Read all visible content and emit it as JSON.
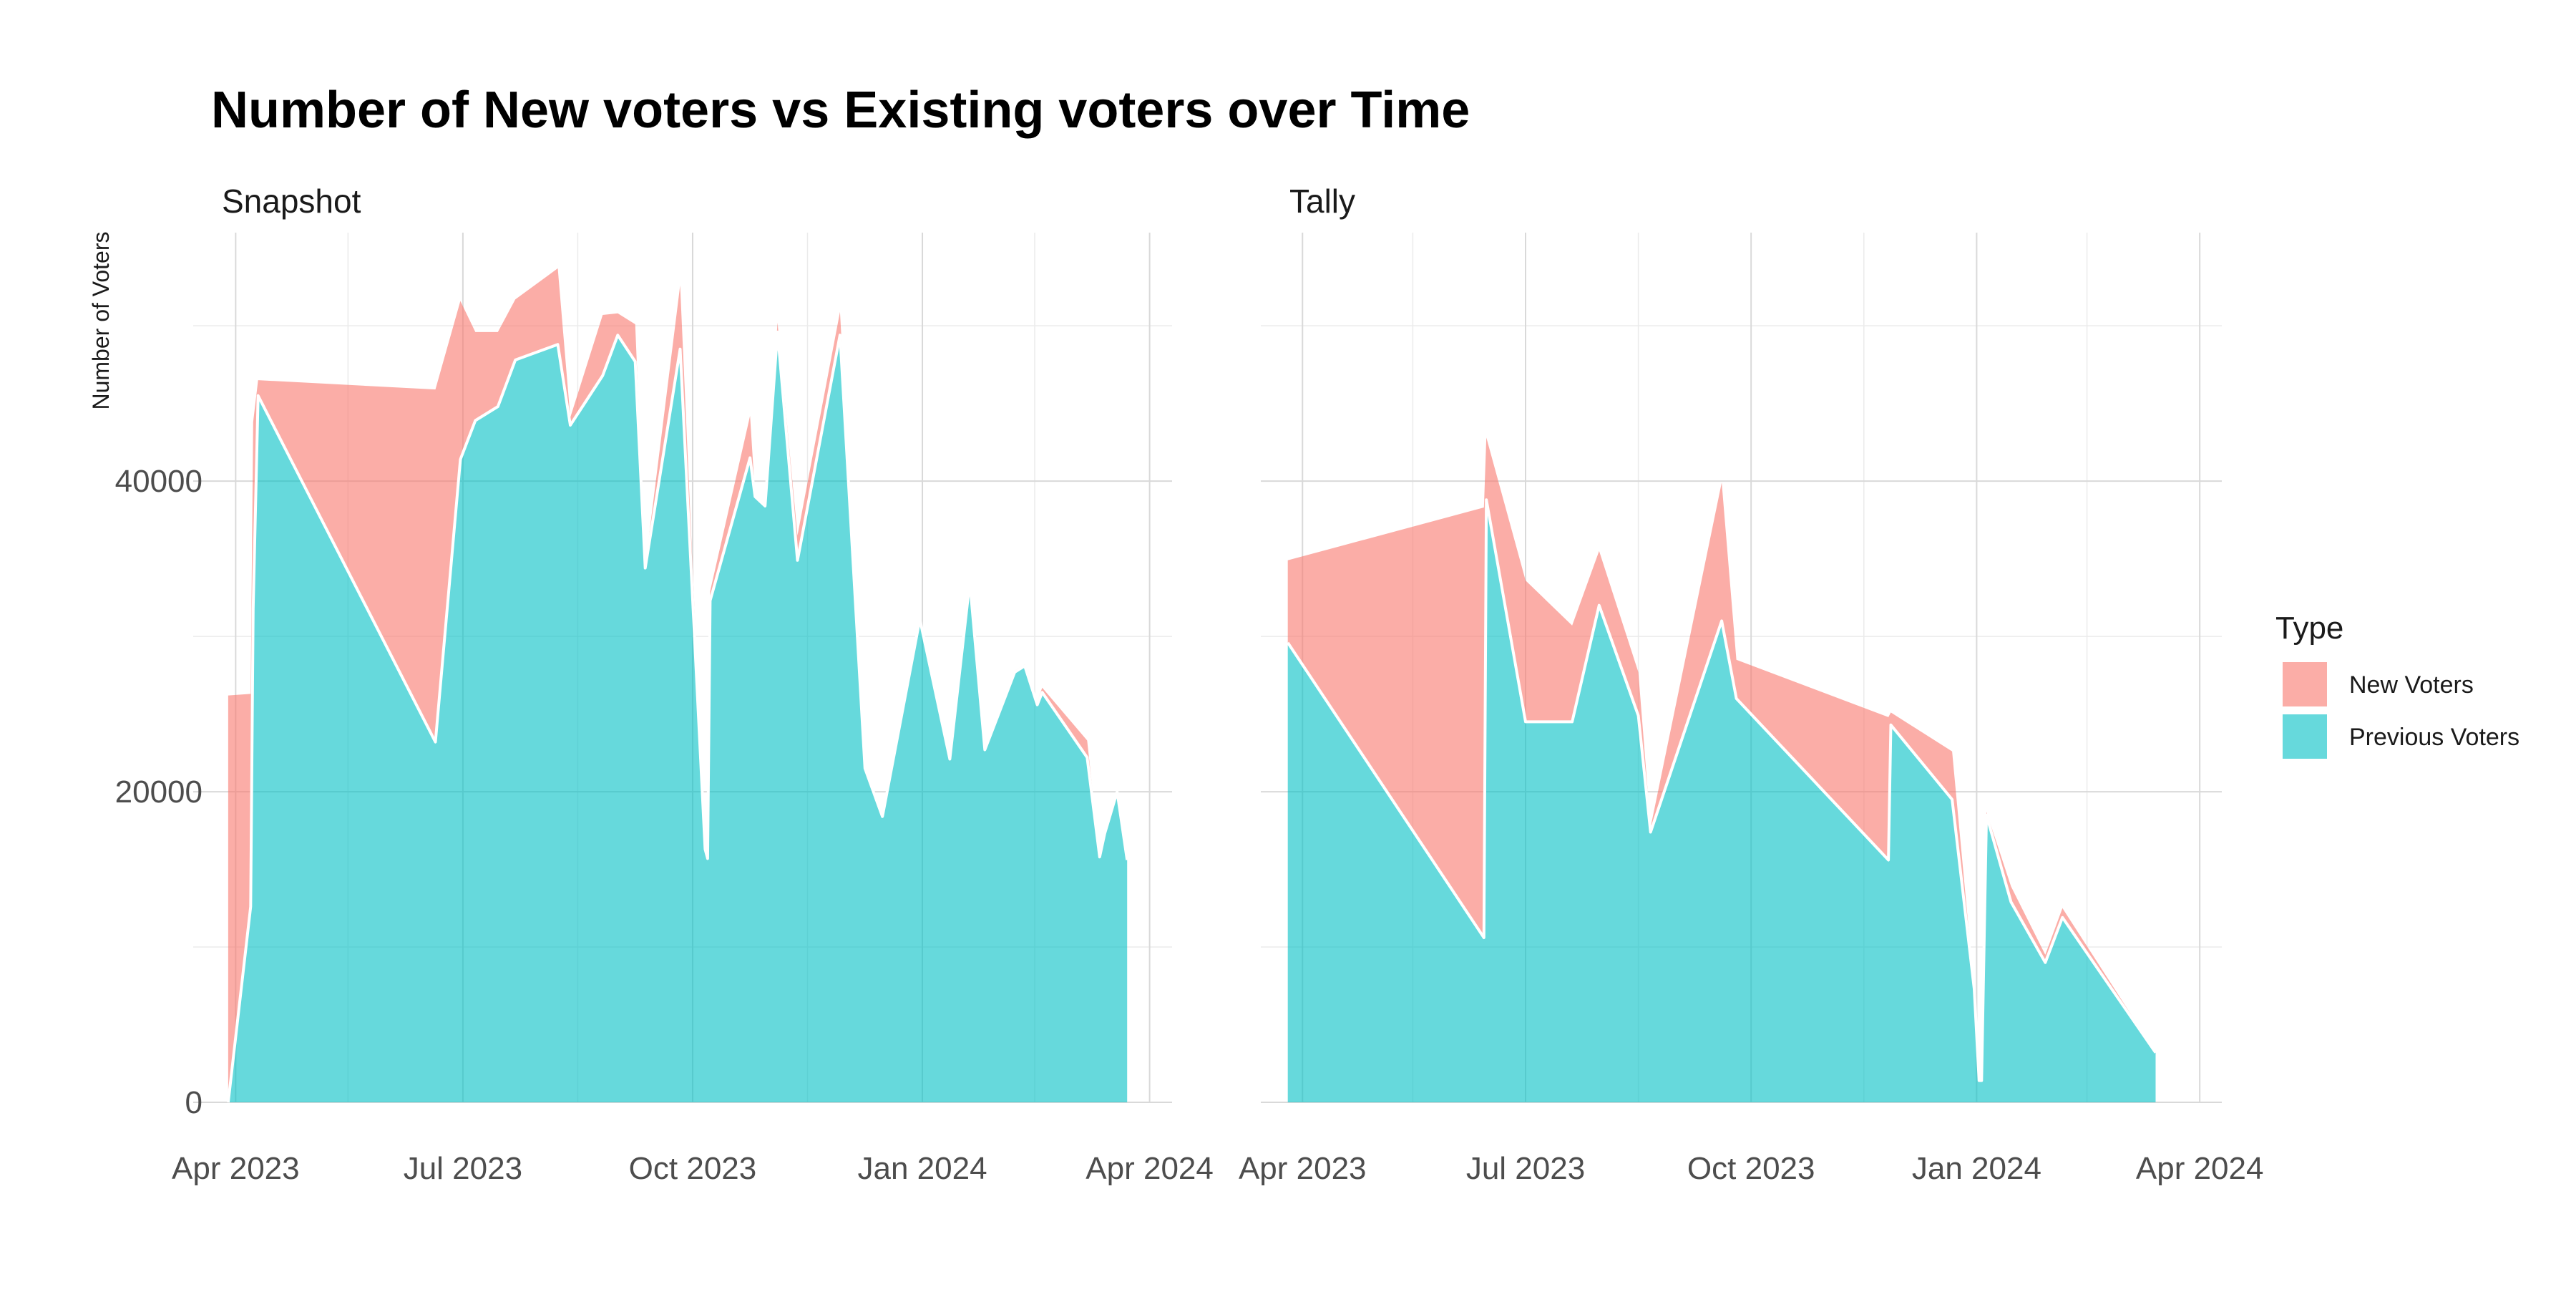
{
  "chart_data": {
    "type": "area",
    "stacked": true,
    "title": "Number of New voters vs Existing voters over Time",
    "ylabel": "Number of Voters",
    "xlabel": "",
    "ylim": [
      0,
      56000
    ],
    "yticks": [
      0,
      20000,
      40000
    ],
    "xlim": [
      "2023-03-15",
      "2024-04-10"
    ],
    "xticks": [
      {
        "date": "2023-04-01",
        "label": "Apr 2023"
      },
      {
        "date": "2023-07-01",
        "label": "Jul 2023"
      },
      {
        "date": "2023-10-01",
        "label": "Oct 2023"
      },
      {
        "date": "2024-01-01",
        "label": "Jan 2024"
      },
      {
        "date": "2024-04-01",
        "label": "Apr 2024"
      }
    ],
    "grid": true,
    "legend": {
      "title": "Type",
      "position": "right",
      "entries": [
        {
          "label": "New Voters",
          "color": "#F8766D"
        },
        {
          "label": "Previous Voters",
          "color": "#00BFC4"
        }
      ]
    },
    "panels": [
      {
        "label": "Snapshot",
        "series": [
          {
            "name": "Previous Voters",
            "points": [
              [
                "2023-03-29",
                0
              ],
              [
                "2023-04-07",
                12600
              ],
              [
                "2023-04-08",
                31800
              ],
              [
                "2023-04-10",
                45500
              ],
              [
                "2023-06-20",
                23200
              ],
              [
                "2023-06-30",
                41400
              ],
              [
                "2023-07-06",
                43900
              ],
              [
                "2023-07-15",
                44800
              ],
              [
                "2023-07-22",
                47800
              ],
              [
                "2023-08-08",
                48800
              ],
              [
                "2023-08-13",
                43600
              ],
              [
                "2023-08-26",
                46800
              ],
              [
                "2023-09-01",
                49400
              ],
              [
                "2023-09-08",
                47700
              ],
              [
                "2023-09-12",
                34400
              ],
              [
                "2023-09-26",
                48500
              ],
              [
                "2023-10-06",
                16300
              ],
              [
                "2023-10-07",
                15700
              ],
              [
                "2023-10-08",
                32300
              ],
              [
                "2023-10-24",
                41500
              ],
              [
                "2023-10-26",
                39000
              ],
              [
                "2023-10-30",
                38400
              ],
              [
                "2023-11-04",
                49600
              ],
              [
                "2023-11-12",
                34900
              ],
              [
                "2023-11-29",
                49400
              ],
              [
                "2023-12-09",
                21500
              ],
              [
                "2023-12-16",
                18400
              ],
              [
                "2023-12-31",
                31100
              ],
              [
                "2024-01-12",
                22100
              ],
              [
                "2024-01-20",
                33500
              ],
              [
                "2024-01-26",
                22700
              ],
              [
                "2024-02-07",
                27700
              ],
              [
                "2024-02-11",
                28100
              ],
              [
                "2024-02-16",
                25600
              ],
              [
                "2024-02-18",
                26400
              ],
              [
                "2024-03-07",
                22200
              ],
              [
                "2024-03-12",
                15800
              ],
              [
                "2024-03-14",
                17300
              ],
              [
                "2024-03-19",
                20000
              ],
              [
                "2024-03-23",
                15600
              ]
            ]
          },
          {
            "name": "New Voters",
            "points": [
              [
                "2023-03-29",
                26200
              ],
              [
                "2023-04-07",
                26300
              ],
              [
                "2023-04-08",
                43800
              ],
              [
                "2023-04-10",
                46500
              ],
              [
                "2023-06-20",
                45900
              ],
              [
                "2023-06-30",
                51600
              ],
              [
                "2023-07-06",
                49600
              ],
              [
                "2023-07-15",
                49600
              ],
              [
                "2023-07-22",
                51700
              ],
              [
                "2023-08-08",
                53700
              ],
              [
                "2023-08-13",
                44100
              ],
              [
                "2023-08-26",
                50700
              ],
              [
                "2023-09-01",
                50800
              ],
              [
                "2023-09-08",
                50100
              ],
              [
                "2023-09-12",
                34500
              ],
              [
                "2023-09-26",
                52600
              ],
              [
                "2023-10-06",
                16300
              ],
              [
                "2023-10-07",
                15700
              ],
              [
                "2023-10-08",
                32900
              ],
              [
                "2023-10-24",
                44200
              ],
              [
                "2023-10-26",
                39100
              ],
              [
                "2023-10-30",
                38500
              ],
              [
                "2023-11-04",
                50200
              ],
              [
                "2023-11-12",
                36500
              ],
              [
                "2023-11-29",
                50900
              ],
              [
                "2023-12-09",
                21600
              ],
              [
                "2023-12-16",
                18500
              ],
              [
                "2023-12-31",
                31200
              ],
              [
                "2024-01-12",
                22200
              ],
              [
                "2024-01-20",
                33600
              ],
              [
                "2024-01-26",
                22800
              ],
              [
                "2024-02-07",
                27800
              ],
              [
                "2024-02-11",
                28200
              ],
              [
                "2024-02-16",
                25800
              ],
              [
                "2024-02-18",
                26700
              ],
              [
                "2024-03-07",
                23300
              ],
              [
                "2024-03-12",
                15800
              ],
              [
                "2024-03-14",
                17300
              ],
              [
                "2024-03-19",
                20000
              ],
              [
                "2024-03-23",
                15600
              ]
            ]
          }
        ]
      },
      {
        "label": "Tally",
        "series": [
          {
            "name": "Previous Voters",
            "points": [
              [
                "2023-03-26",
                29600
              ],
              [
                "2023-06-14",
                10600
              ],
              [
                "2023-06-15",
                38800
              ],
              [
                "2023-07-01",
                24500
              ],
              [
                "2023-07-20",
                24500
              ],
              [
                "2023-07-31",
                32000
              ],
              [
                "2023-08-16",
                24900
              ],
              [
                "2023-08-21",
                17400
              ],
              [
                "2023-09-19",
                31000
              ],
              [
                "2023-09-25",
                26000
              ],
              [
                "2023-11-26",
                15600
              ],
              [
                "2023-11-27",
                24300
              ],
              [
                "2023-12-22",
                19500
              ],
              [
                "2023-12-31",
                7300
              ],
              [
                "2024-01-02",
                1400
              ],
              [
                "2024-01-03",
                1400
              ],
              [
                "2024-01-05",
                18500
              ],
              [
                "2024-01-15",
                12900
              ],
              [
                "2024-01-29",
                9000
              ],
              [
                "2024-02-05",
                11900
              ],
              [
                "2024-03-14",
                3200
              ]
            ]
          },
          {
            "name": "New Voters",
            "points": [
              [
                "2023-03-26",
                34900
              ],
              [
                "2023-06-14",
                38300
              ],
              [
                "2023-06-15",
                42800
              ],
              [
                "2023-07-01",
                33600
              ],
              [
                "2023-07-20",
                30700
              ],
              [
                "2023-07-31",
                35500
              ],
              [
                "2023-08-16",
                27700
              ],
              [
                "2023-08-21",
                17700
              ],
              [
                "2023-09-19",
                39900
              ],
              [
                "2023-09-25",
                28500
              ],
              [
                "2023-11-26",
                24800
              ],
              [
                "2023-11-27",
                25100
              ],
              [
                "2023-12-22",
                22600
              ],
              [
                "2023-12-31",
                7300
              ],
              [
                "2024-01-02",
                1400
              ],
              [
                "2024-01-03",
                1400
              ],
              [
                "2024-01-05",
                18700
              ],
              [
                "2024-01-15",
                13900
              ],
              [
                "2024-01-29",
                9500
              ],
              [
                "2024-02-05",
                12500
              ],
              [
                "2024-03-14",
                3200
              ]
            ]
          }
        ]
      }
    ]
  }
}
